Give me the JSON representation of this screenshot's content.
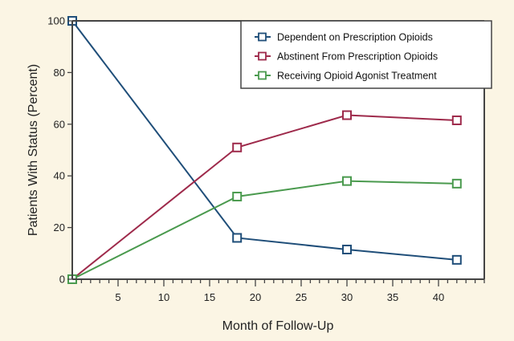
{
  "chart_data": {
    "type": "line",
    "title": "",
    "xlabel": "Month of Follow-Up",
    "ylabel": "Patients With Status (Percent)",
    "xlim": [
      0,
      45
    ],
    "ylim": [
      0,
      100
    ],
    "x_major_ticks": [
      5,
      10,
      15,
      20,
      25,
      30,
      35,
      40
    ],
    "x_minor_step": 1,
    "y_ticks": [
      0,
      20,
      40,
      60,
      80,
      100
    ],
    "grid": false,
    "legend_position": "top-right",
    "series": [
      {
        "name": "Dependent on Prescription Opioids",
        "color": "#1f4e79",
        "marker": "square-open",
        "x": [
          0,
          18,
          30,
          42
        ],
        "y": [
          100,
          16,
          11.5,
          7.5
        ]
      },
      {
        "name": "Abstinent From Prescription Opioids",
        "color": "#9e2a4b",
        "marker": "square-open",
        "x": [
          0,
          18,
          30,
          42
        ],
        "y": [
          0,
          51,
          63.5,
          61.5
        ]
      },
      {
        "name": "Receiving Opioid Agonist Treatment",
        "color": "#4a9a4e",
        "marker": "square-open",
        "x": [
          0,
          18,
          30,
          42
        ],
        "y": [
          0,
          32,
          38,
          37
        ]
      }
    ]
  }
}
